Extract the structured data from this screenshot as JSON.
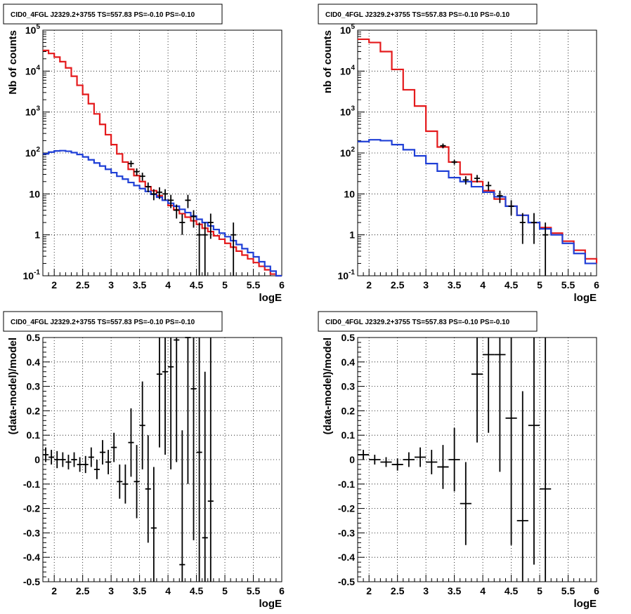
{
  "chart_data": [
    {
      "type": "histogram",
      "title": "CID0_4FGL J2329.2+3755 TS=557.83 PS=-0.10 PS=-0.10",
      "xlabel": "logE",
      "ylabel": "Nb of counts",
      "xlim": [
        1.8,
        6.0
      ],
      "ylim": [
        0.1,
        100000
      ],
      "yscale": "log",
      "grid": true,
      "x_ticks": [
        "2",
        "2.5",
        "3",
        "3.5",
        "4",
        "4.5",
        "5",
        "5.5",
        "6"
      ],
      "y_ticks": [
        "10^-1",
        "1",
        "10",
        "10^2",
        "10^3",
        "10^4",
        "10^5"
      ],
      "series": [
        {
          "kind": "step",
          "color": "#e41a1c",
          "edges": [
            1.8,
            1.9,
            2.0,
            2.1,
            2.2,
            2.3,
            2.4,
            2.5,
            2.6,
            2.7,
            2.8,
            2.9,
            3.0,
            3.1,
            3.2,
            3.3,
            3.4,
            3.5,
            3.6,
            3.7,
            3.8,
            3.9,
            4.0,
            4.1,
            4.2,
            4.3,
            4.4,
            4.5,
            4.6,
            4.7,
            4.8,
            4.9,
            5.0,
            5.1,
            5.2,
            5.3,
            5.4,
            5.5,
            5.6,
            5.7,
            5.8,
            5.9,
            6.0
          ],
          "values": [
            32000,
            27000,
            22000,
            17000,
            12000,
            7500,
            4500,
            2700,
            1600,
            900,
            500,
            280,
            160,
            95,
            60,
            40,
            28,
            20,
            15,
            12,
            9,
            7,
            5.2,
            4.1,
            3.3,
            2.7,
            2.2,
            1.8,
            1.45,
            1.2,
            0.95,
            0.78,
            0.62,
            0.5,
            0.4,
            0.32,
            0.26,
            0.21,
            0.17,
            0.14,
            0.11,
            0.1
          ]
        },
        {
          "kind": "step",
          "color": "#1f3fd6",
          "edges": [
            1.8,
            1.9,
            2.0,
            2.1,
            2.2,
            2.3,
            2.4,
            2.5,
            2.6,
            2.7,
            2.8,
            2.9,
            3.0,
            3.1,
            3.2,
            3.3,
            3.4,
            3.5,
            3.6,
            3.7,
            3.8,
            3.9,
            4.0,
            4.1,
            4.2,
            4.3,
            4.4,
            4.5,
            4.6,
            4.7,
            4.8,
            4.9,
            5.0,
            5.1,
            5.2,
            5.3,
            5.4,
            5.5,
            5.6,
            5.7,
            5.8,
            5.9,
            6.0
          ],
          "values": [
            95,
            105,
            112,
            114,
            110,
            102,
            92,
            80,
            68,
            57,
            48,
            40,
            33,
            27,
            23,
            19,
            16,
            13.5,
            11.5,
            9.8,
            8.3,
            7,
            5.9,
            5,
            4.2,
            3.5,
            2.9,
            2.4,
            2,
            1.65,
            1.35,
            1.1,
            0.9,
            0.72,
            0.58,
            0.46,
            0.37,
            0.29,
            0.22,
            0.17,
            0.13,
            0.1
          ]
        },
        {
          "kind": "points",
          "color": "#000000",
          "x": [
            3.35,
            3.45,
            3.55,
            3.65,
            3.75,
            3.85,
            3.95,
            4.05,
            4.15,
            4.25,
            4.35,
            4.45,
            4.55,
            4.65,
            4.75,
            5.15
          ],
          "y": [
            55,
            35,
            27,
            15,
            10,
            11,
            10,
            7,
            4,
            2,
            7,
            2.8,
            1,
            1,
            2,
            1
          ],
          "ylo": [
            45,
            28,
            21,
            11,
            7,
            7.5,
            7,
            4.5,
            2.5,
            1,
            4.5,
            1.5,
            0.1,
            0.1,
            0.8,
            0.1
          ],
          "yhi": [
            65,
            42,
            33,
            19,
            13,
            14.5,
            13,
            9.5,
            5.5,
            3.2,
            9.5,
            4,
            2,
            2,
            3.3,
            2
          ]
        }
      ]
    },
    {
      "type": "histogram",
      "title": "CID0_4FGL J2329.2+3755 TS=557.83 PS=-0.10 PS=-0.10",
      "xlabel": "logE",
      "ylabel": "nb of counts",
      "xlim": [
        1.8,
        6.0
      ],
      "ylim": [
        0.1,
        100000
      ],
      "yscale": "log",
      "grid": true,
      "x_ticks": [
        "2",
        "2.5",
        "3",
        "3.5",
        "4",
        "4.5",
        "5",
        "5.5",
        "6"
      ],
      "y_ticks": [
        "10^-1",
        "1",
        "10",
        "10^2",
        "10^3",
        "10^4",
        "10^5"
      ],
      "series": [
        {
          "kind": "step",
          "color": "#e41a1c",
          "edges": [
            1.8,
            2.0,
            2.2,
            2.4,
            2.6,
            2.8,
            3.0,
            3.2,
            3.4,
            3.6,
            3.8,
            4.0,
            4.2,
            4.4,
            4.6,
            4.8,
            5.0,
            5.2,
            5.4,
            5.6,
            5.8,
            6.0
          ],
          "values": [
            60000,
            50000,
            30000,
            11000,
            3500,
            1400,
            340,
            140,
            60,
            30,
            20,
            12,
            7.5,
            5,
            3,
            2,
            1.5,
            1.1,
            0.7,
            0.42,
            0.26,
            0.2
          ]
        },
        {
          "kind": "step",
          "color": "#1f3fd6",
          "edges": [
            1.8,
            2.0,
            2.2,
            2.4,
            2.6,
            2.8,
            3.0,
            3.2,
            3.4,
            3.6,
            3.8,
            4.0,
            4.2,
            4.4,
            4.6,
            4.8,
            5.0,
            5.2,
            5.4,
            5.6,
            5.8,
            6.0
          ],
          "values": [
            190,
            210,
            200,
            160,
            120,
            85,
            55,
            36,
            25,
            20,
            15,
            11,
            8.5,
            5,
            3,
            2,
            1.4,
            1,
            0.62,
            0.35,
            0.2,
            0.2
          ]
        },
        {
          "kind": "points",
          "color": "#000000",
          "x": [
            3.3,
            3.5,
            3.7,
            3.9,
            4.1,
            4.3,
            4.5,
            4.7,
            4.9,
            5.1
          ],
          "y": [
            150,
            60,
            22,
            24,
            16,
            9,
            5,
            2,
            2,
            1
          ],
          "ylo": [
            130,
            52,
            17,
            19,
            12,
            6,
            3,
            0.6,
            0.6,
            0.1
          ],
          "yhi": [
            170,
            68,
            27,
            29,
            20,
            12,
            7,
            3.4,
            3.4,
            2
          ]
        }
      ]
    },
    {
      "type": "scatter",
      "title": "CID0_4FGL J2329.2+3755 TS=557.83 PS=-0.10 PS=-0.10",
      "xlabel": "logE",
      "ylabel": "(data-model)/model",
      "xlim": [
        1.8,
        6.0
      ],
      "ylim": [
        -0.5,
        0.5
      ],
      "grid": true,
      "x_ticks": [
        "2",
        "2.5",
        "3",
        "3.5",
        "4",
        "4.5",
        "5",
        "5.5",
        "6"
      ],
      "y_ticks": [
        "-0.5",
        "-0.4",
        "-0.3",
        "-0.2",
        "-0.1",
        "0",
        "0.1",
        "0.2",
        "0.3",
        "0.4",
        "0.5"
      ],
      "series": [
        {
          "kind": "points",
          "color": "#000000",
          "xerr": 0.05,
          "x": [
            1.85,
            1.95,
            2.05,
            2.15,
            2.25,
            2.35,
            2.45,
            2.55,
            2.65,
            2.75,
            2.85,
            2.95,
            3.05,
            3.15,
            3.25,
            3.35,
            3.45,
            3.55,
            3.65,
            3.75,
            3.85,
            3.95,
            4.05,
            4.15,
            4.25,
            4.35,
            4.45,
            4.55,
            4.65,
            4.75
          ],
          "y": [
            0.02,
            0.01,
            0.0,
            0.0,
            -0.01,
            0.0,
            -0.02,
            -0.02,
            0.01,
            -0.04,
            0.03,
            -0.01,
            0.05,
            -0.09,
            -0.1,
            0.07,
            -0.09,
            0.14,
            -0.12,
            -0.28,
            0.35,
            0.36,
            0.38,
            0.49,
            -0.43,
            0.5,
            0.29,
            0.03,
            -0.32,
            -0.17
          ],
          "yerr": [
            0.03,
            0.03,
            0.035,
            0.03,
            0.03,
            0.03,
            0.03,
            0.035,
            0.04,
            0.04,
            0.05,
            0.05,
            0.06,
            0.07,
            0.08,
            0.14,
            0.15,
            0.18,
            0.22,
            0.25,
            0.3,
            0.34,
            0.42,
            0.5,
            0.55,
            0.6,
            0.62,
            0.65,
            0.68,
            0.75
          ]
        }
      ]
    },
    {
      "type": "scatter",
      "title": "CID0_4FGL J2329.2+3755 TS=557.83 PS=-0.10 PS=-0.10",
      "xlabel": "logE",
      "ylabel": "(data-model)/model",
      "xlim": [
        1.8,
        6.0
      ],
      "ylim": [
        -0.5,
        0.5
      ],
      "grid": true,
      "x_ticks": [
        "2",
        "2.5",
        "3",
        "3.5",
        "4",
        "4.5",
        "5",
        "5.5",
        "6"
      ],
      "y_ticks": [
        "-0.5",
        "-0.4",
        "-0.3",
        "-0.2",
        "-0.1",
        "0",
        "0.1",
        "0.2",
        "0.3",
        "0.4",
        "0.5"
      ],
      "series": [
        {
          "kind": "points",
          "color": "#000000",
          "xerr": 0.1,
          "x": [
            1.9,
            2.1,
            2.3,
            2.5,
            2.7,
            2.9,
            3.1,
            3.3,
            3.5,
            3.7,
            3.9,
            4.1,
            4.3,
            4.5,
            4.7,
            4.9,
            5.1
          ],
          "y": [
            0.02,
            0.0,
            -0.01,
            -0.02,
            0.0,
            0.01,
            -0.01,
            -0.03,
            0.0,
            -0.18,
            0.35,
            0.43,
            0.43,
            0.17,
            -0.25,
            0.14,
            -0.12
          ],
          "yerr": [
            0.02,
            0.02,
            0.02,
            0.025,
            0.03,
            0.04,
            0.05,
            0.09,
            0.13,
            0.17,
            0.28,
            0.32,
            0.48,
            0.52,
            0.53,
            0.57,
            0.65
          ]
        }
      ]
    }
  ]
}
